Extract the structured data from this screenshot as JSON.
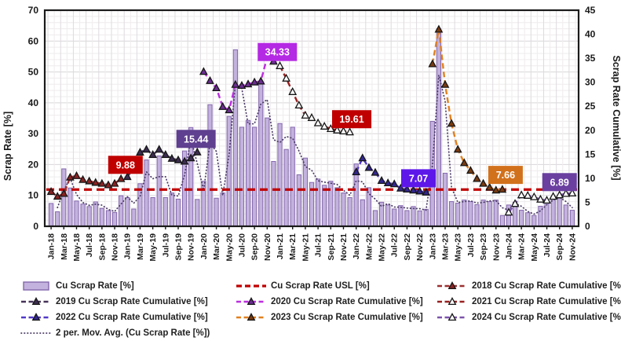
{
  "chart_data": {
    "type": "bar",
    "subtype": "combo-bar-line",
    "title": "",
    "axes": {
      "left": {
        "title": "Scrap Rate [%]",
        "min": 0,
        "max": 70,
        "step": 10
      },
      "right": {
        "title": "Scrap Rate Cumulative [%]",
        "min": 0,
        "max": 45,
        "step": 5
      },
      "x_tick_labels": [
        "Jan-18",
        "Mar-18",
        "May-18",
        "Jul-18",
        "Sep-18",
        "Nov-18",
        "Jan-19",
        "Mar-19",
        "May-19",
        "Jul-19",
        "Sep-19",
        "Nov-19",
        "Jan-20",
        "Mar-20",
        "May-20",
        "Jul-20",
        "Sep-20",
        "Nov-20",
        "Jan-21",
        "Mar-21",
        "May-21",
        "Jul-21",
        "Sep-21",
        "Nov-21",
        "Jan-22",
        "Mar-22",
        "May-22",
        "Jul-22",
        "Sep-22",
        "Nov-22",
        "Jan-23",
        "Mar-23",
        "May-23",
        "Jul-23",
        "Sep-23",
        "Nov-23",
        "Jan-24",
        "Mar-24",
        "May-24",
        "Jul-24",
        "Sep-24",
        "Nov-24"
      ],
      "months_count": 83
    },
    "bars": {
      "name": "Cu Scrap Rate [%]",
      "axis": "left",
      "fill": "#c3b2dd",
      "stroke": "#8467ad",
      "values": [
        7.4,
        4.7,
        18.6,
        12.4,
        8.2,
        7.2,
        6.4,
        7.9,
        5.8,
        5.1,
        4.5,
        9.9,
        9.3,
        5.6,
        13.8,
        21.5,
        9.3,
        22.8,
        9.3,
        10.8,
        8.8,
        24.4,
        32.0,
        8.7,
        14.6,
        39.4,
        9.1,
        10.8,
        35.6,
        57.2,
        32.1,
        34.3,
        32.1,
        47.0,
        35.1,
        21.0,
        33.3,
        24.9,
        32.1,
        16.7,
        22.1,
        14.2,
        15.3,
        13.3,
        14.6,
        12.5,
        10.8,
        9.3,
        20.2,
        8.6,
        12.5,
        5.1,
        7.8,
        6.9,
        5.6,
        6.7,
        5.1,
        6.4,
        5.0,
        5.5,
        34.0,
        64.0,
        17.2,
        8.0,
        7.5,
        8.5,
        8.0,
        7.0,
        8.5,
        8.0,
        8.5,
        3.5,
        6.9,
        7.8,
        5.2,
        4.4,
        3.5,
        6.5,
        7.5,
        9.5,
        9.2,
        6.9,
        5.2
      ]
    },
    "usl": {
      "name": "Cu Scrap Rate USL [%]",
      "axis": "left",
      "value": 11.9,
      "color": "#c00000"
    },
    "moving_average": {
      "name": "2 per. Mov. Avg. (Cu Scrap Rate [%])",
      "axis": "left",
      "period": 2,
      "color": "#4a3a66"
    },
    "series": [
      {
        "name": "2018 Cu Scrap Rate Cumulative [%]",
        "axis": "right",
        "start_index": 0,
        "line": "#9c2f2f",
        "marker_fill": "#8b2222",
        "marker_stroke": "#161616",
        "values": [
          7.2,
          6.2,
          6.8,
          10.2,
          10.5,
          9.7,
          9.4,
          9.1,
          8.9,
          8.6,
          8.9,
          9.88
        ]
      },
      {
        "name": "2019 Cu Scrap Rate Cumulative [%]",
        "axis": "right",
        "start_index": 12,
        "line": "#453358",
        "marker_fill": "#3c2d50",
        "marker_stroke": "#161616",
        "values": [
          10.3,
          12.2,
          15.4,
          16.0,
          14.9,
          16.0,
          14.9,
          14.1,
          13.8,
          13.5,
          14.2,
          15.44
        ]
      },
      {
        "name": "2020 Cu Scrap Rate Cumulative [%]",
        "axis": "right",
        "start_index": 24,
        "line": "#bb2fe0",
        "marker_fill": "#6b2d91",
        "marker_stroke": "#161616",
        "values": [
          32.2,
          30.3,
          28.8,
          24.9,
          24.2,
          29.5,
          29.3,
          29.6,
          30.0,
          30.2,
          35.2,
          34.33
        ]
      },
      {
        "name": "2021 Cu Scrap Rate Cumulative [%]",
        "axis": "right",
        "start_index": 36,
        "line": "#992121",
        "marker_fill": "#ffffff",
        "marker_stroke": "#161616",
        "values": [
          33.4,
          30.8,
          28.0,
          25.2,
          23.1,
          22.6,
          21.5,
          20.8,
          20.3,
          20.0,
          19.8,
          19.61
        ]
      },
      {
        "name": "2022 Cu Scrap Rate Cumulative [%]",
        "axis": "right",
        "start_index": 48,
        "line": "#5038c8",
        "marker_fill": "#32278f",
        "marker_stroke": "#161616",
        "values": [
          11.3,
          14.2,
          12.2,
          11.2,
          9.5,
          9.0,
          8.8,
          7.9,
          7.7,
          7.5,
          7.3,
          7.07
        ]
      },
      {
        "name": "2023 Cu Scrap Rate Cumulative [%]",
        "axis": "right",
        "start_index": 60,
        "line": "#e2801f",
        "marker_fill": "#7a3b10",
        "marker_stroke": "#161616",
        "values": [
          33.8,
          41.0,
          29.5,
          21.4,
          16.0,
          13.2,
          11.6,
          9.9,
          8.9,
          8.1,
          7.5,
          7.66
        ]
      },
      {
        "name": "2024 Cu Scrap Rate Cumulative [%]",
        "axis": "right",
        "start_index": 72,
        "line": "#7b52ab",
        "marker_fill": "#ffffff",
        "marker_stroke": "#161616",
        "values": [
          2.9,
          4.7,
          6.5,
          6.4,
          6.1,
          5.6,
          5.4,
          6.2,
          6.5,
          6.8,
          6.89
        ]
      }
    ],
    "callouts": [
      {
        "text": "9.88",
        "bg": "#c00000",
        "xi": 11.7,
        "yv": 12.8
      },
      {
        "text": "15.44",
        "bg": "#5f3f8f",
        "xi": 22.8,
        "yv": 18.2
      },
      {
        "text": "34.33",
        "bg": "#b429e3",
        "xi": 35.6,
        "yv": 36.3
      },
      {
        "text": "19.61",
        "bg": "#c00000",
        "xi": 47.3,
        "yv": 22.3
      },
      {
        "text": "7.07",
        "bg": "#5d17e9",
        "xi": 57.8,
        "yv": 10.0
      },
      {
        "text": "7.66",
        "bg": "#d2711c",
        "xi": 71.5,
        "yv": 10.7
      },
      {
        "text": "6.89",
        "bg": "#6a3fa0",
        "xi": 80.0,
        "yv": 9.2
      }
    ],
    "legend": {
      "rows": [
        [
          "bars",
          "usl",
          "s2018"
        ],
        [
          "s2019",
          "s2020",
          "s2021"
        ],
        [
          "s2022",
          "s2023",
          "s2024"
        ],
        [
          "movavg"
        ]
      ],
      "labels": {
        "bars": "Cu Scrap Rate [%]",
        "usl": "Cu Scrap Rate USL [%]",
        "s2018": "2018 Cu Scrap Rate Cumulative [%]",
        "s2019": "2019 Cu Scrap Rate Cumulative [%]",
        "s2020": "2020 Cu Scrap Rate Cumulative [%]",
        "s2021": "2021 Cu Scrap Rate Cumulative [%]",
        "s2022": "2022 Cu Scrap Rate Cumulative [%]",
        "s2023": "2023 Cu Scrap Rate Cumulative [%]",
        "s2024": "2024 Cu Scrap Rate Cumulative [%]",
        "movavg": "2 per. Mov. Avg. (Cu Scrap Rate [%])"
      }
    }
  }
}
